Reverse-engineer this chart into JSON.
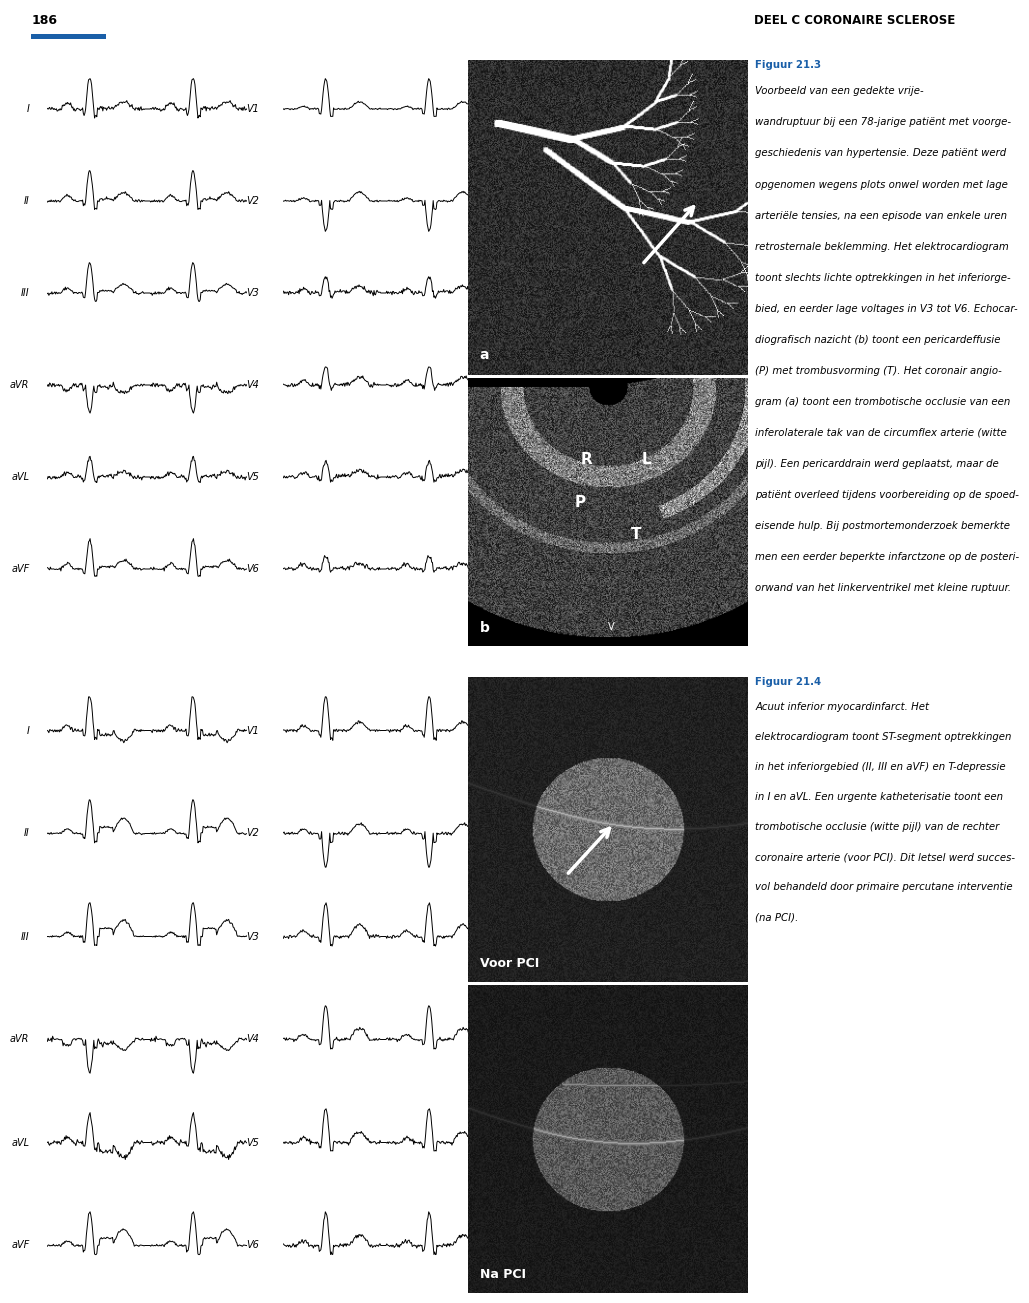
{
  "page_number": "186",
  "header_right": "DEEL C CORONAIRE SCLEROSE",
  "header_bar_color": "#1a5fa8",
  "background_color": "#ffffff",
  "text_color": "#000000",
  "figuur_label_color": "#1a5fa8",
  "ecg_leads_top_left": [
    "I",
    "II",
    "III",
    "aVR",
    "aVL",
    "aVF"
  ],
  "ecg_leads_top_right": [
    "V1",
    "V2",
    "V3",
    "V4",
    "V5",
    "V6"
  ],
  "ecg_leads_bot_left": [
    "I",
    "II",
    "III",
    "aVR",
    "aVL",
    "aVF"
  ],
  "ecg_leads_bot_right": [
    "V1",
    "V2",
    "V3",
    "V4",
    "V5",
    "V6"
  ],
  "label_voor_pci": "Voor PCI",
  "label_na_pci": "Na PCI",
  "fig3_bold": "Figuur 21.3",
  "fig3_lines": [
    "Voorbeeld van een gedekte vrije-",
    "wandruptuur bij een 78-jarige patiënt met voorge-",
    "geschiedenis van hypertensie. Deze patiënt werd",
    "opgenomen wegens plots onwel worden met lage",
    "arteriële tensies, na een episode van enkele uren",
    "retrosternale beklemming. Het elektrocardiogram",
    "toont slechts lichte optrekkingen in het inferiorge-",
    "bied, en eerder lage voltages in V3 tot V6. Echocar-",
    "diografisch nazicht (b) toont een pericardeffusie",
    "(P) met trombusvorming (T). Het coronair angio-",
    "gram (a) toont een trombotische occlusie van een",
    "inferolaterale tak van de circumflex arterie (witte",
    "pijl). Een pericarddrain werd geplaatst, maar de",
    "patiënt overleed tijdens voorbereiding op de spoed-",
    "eisende hulp. Bij postmortemonderzoek bemerkte",
    "men een eerder beperkte infarctzone op de posteri-",
    "orwand van het linkerventrikel met kleine ruptuur."
  ],
  "fig4_bold": "Figuur 21.4",
  "fig4_lines": [
    "Acuut inferior myocardinfarct. Het",
    "elektrocardiogram toont ST-segment optrekkingen",
    "in het inferiorgebied (II, III en aVF) en T-depressie",
    "in I en aVL. Een urgente katheterisatie toont een",
    "trombotische occlusie (witte pijl) van de rechter",
    "coronaire arterie (voor PCI). Dit letsel werd succes-",
    "vol behandeld door primaire percutane interventie",
    "(na PCI)."
  ]
}
